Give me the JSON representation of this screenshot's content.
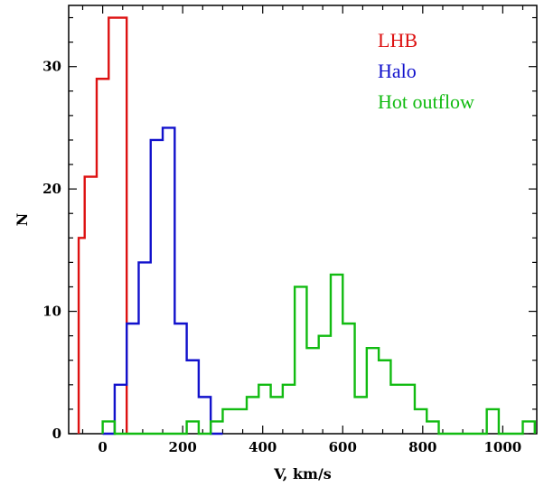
{
  "chart_data": {
    "type": "histogram-step",
    "title": "",
    "xlabel": "V, km/s",
    "ylabel": "N",
    "xlim": [
      -85,
      1085
    ],
    "ylim": [
      0,
      35
    ],
    "bin_width": 30,
    "x_ticks": [
      0,
      200,
      400,
      600,
      800,
      1000
    ],
    "y_ticks": [
      0,
      10,
      20,
      30
    ],
    "grid": false,
    "legend": {
      "placement": "top-right"
    },
    "series": [
      {
        "name": "LHB",
        "color": "#dd1111",
        "bins": [
          [
            -60,
            16
          ],
          [
            -30,
            21
          ],
          [
            -15,
            29
          ],
          [
            15,
            29
          ],
          [
            30,
            34
          ]
        ],
        "edges": [
          -60,
          -45,
          -30,
          -15,
          0,
          15,
          30,
          60
        ],
        "counts": [
          16,
          21,
          21,
          29,
          29,
          34,
          34
        ]
      },
      {
        "name": "Halo",
        "color": "#1111cc",
        "edges": [
          0,
          30,
          60,
          90,
          120,
          150,
          180,
          210,
          240,
          270,
          300
        ],
        "counts": [
          0,
          4,
          9,
          14,
          24,
          25,
          9,
          6,
          3,
          0
        ]
      },
      {
        "name": "Hot outflow",
        "color": "#11bb11",
        "edges": [
          0,
          30,
          60,
          90,
          120,
          150,
          180,
          210,
          240,
          270,
          300,
          330,
          360,
          390,
          420,
          450,
          480,
          510,
          540,
          570,
          600,
          630,
          660,
          690,
          720,
          750,
          780,
          810,
          840,
          870,
          900,
          930,
          960,
          990,
          1020,
          1050,
          1080
        ],
        "counts": [
          1,
          0,
          0,
          0,
          0,
          0,
          0,
          1,
          0,
          1,
          2,
          2,
          3,
          4,
          3,
          4,
          12,
          7,
          8,
          13,
          9,
          3,
          7,
          6,
          4,
          4,
          2,
          1,
          0,
          0,
          0,
          0,
          2,
          0,
          0,
          1
        ]
      }
    ]
  }
}
